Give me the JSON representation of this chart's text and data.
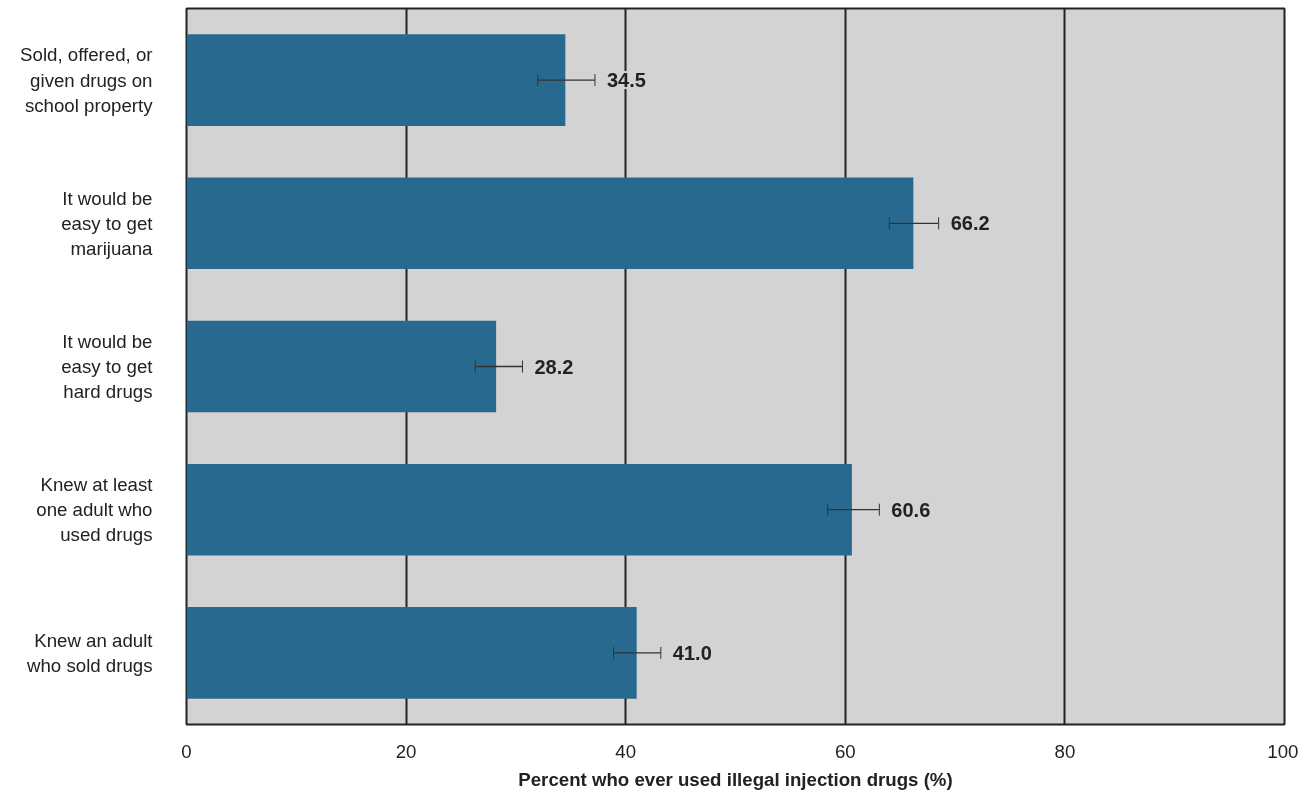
{
  "chart_data": {
    "type": "bar",
    "orientation": "horizontal",
    "xlabel": "Percent who ever used illegal injection drugs (%)",
    "categories": [
      "Sold, offered, or\ngiven drugs on\nschool property",
      "It would be\neasy to get\nmarijuana",
      "It would be\neasy to get\nhard drugs",
      "Knew at least\none adult who\nused drugs",
      "Knew an adult\nwho sold drugs"
    ],
    "values": [
      34.5,
      66.2,
      28.2,
      60.6,
      41.0
    ],
    "errors": [
      [
        32.0,
        37.2
      ],
      [
        64.0,
        68.5
      ],
      [
        26.3,
        30.6
      ],
      [
        58.4,
        63.1
      ],
      [
        38.9,
        43.2
      ]
    ],
    "color": "#286a8f",
    "value_labels": [
      "34.5",
      "66.2",
      "28.2",
      "60.6",
      "41.0"
    ],
    "xlim": [
      0,
      100
    ],
    "xticks": [
      0,
      20,
      40,
      60,
      80,
      100
    ],
    "grid": "x"
  }
}
